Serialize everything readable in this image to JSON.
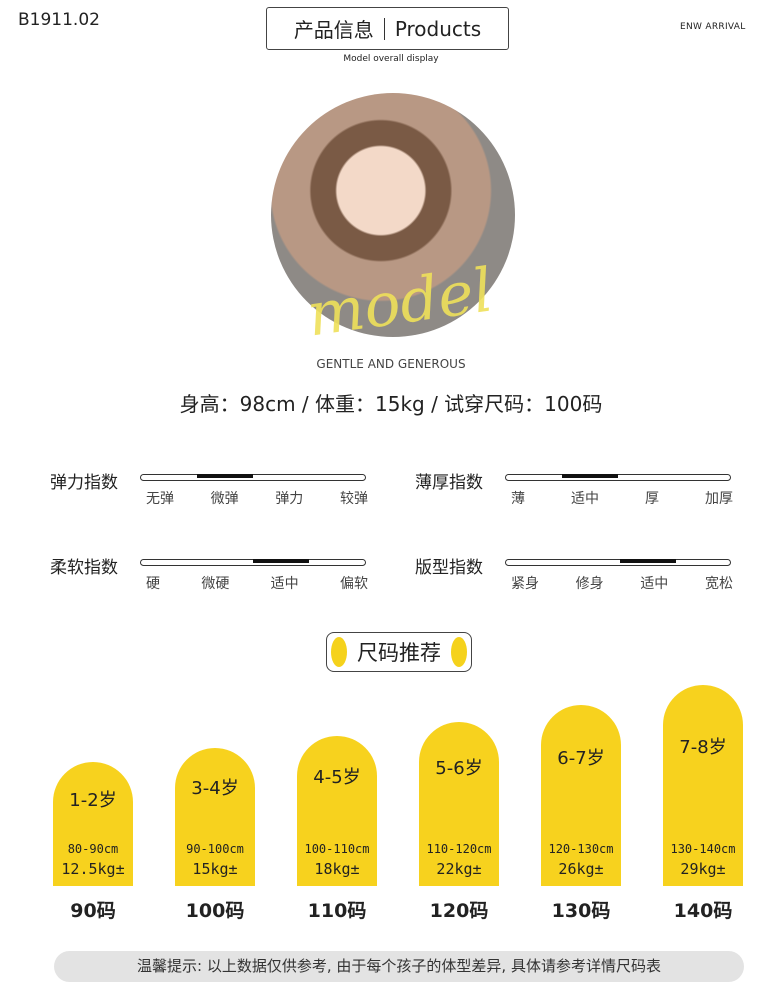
{
  "code": "B1911.02",
  "header": {
    "cn": "产品信息",
    "en": "Products",
    "subtitle": "Model overall display",
    "arrival": "ENW ARRIVAL"
  },
  "model": {
    "script": "model",
    "tagline": "GENTLE AND GENEROUS",
    "stats": "身高：98cm / 体重：15kg / 试穿尺码：100码"
  },
  "indices": [
    {
      "label": "弹力指数",
      "ticks": [
        "无弹",
        "微弹",
        "弹力",
        "较弹"
      ],
      "range": [
        0.25,
        0.5
      ]
    },
    {
      "label": "薄厚指数",
      "ticks": [
        "薄",
        "适中",
        "厚",
        "加厚"
      ],
      "range": [
        0.25,
        0.5
      ]
    },
    {
      "label": "柔软指数",
      "ticks": [
        "硬",
        "微硬",
        "适中",
        "偏软"
      ],
      "range": [
        0.5,
        0.75
      ]
    },
    {
      "label": "版型指数",
      "ticks": [
        "紧身",
        "修身",
        "适中",
        "宽松"
      ],
      "range": [
        0.51,
        0.76
      ]
    }
  ],
  "size_title": "尺码推荐",
  "accent": "#f7d21e",
  "sizes": [
    {
      "age": "1-2岁",
      "cm": "80-90cm",
      "kg": "12.5kg±",
      "size": "90码"
    },
    {
      "age": "3-4岁",
      "cm": "90-100cm",
      "kg": "15kg±",
      "size": "100码"
    },
    {
      "age": "4-5岁",
      "cm": "100-110cm",
      "kg": "18kg±",
      "size": "110码"
    },
    {
      "age": "5-6岁",
      "cm": "110-120cm",
      "kg": "22kg±",
      "size": "120码"
    },
    {
      "age": "6-7岁",
      "cm": "120-130cm",
      "kg": "26kg±",
      "size": "130码"
    },
    {
      "age": "7-8岁",
      "cm": "130-140cm",
      "kg": "29kg±",
      "size": "140码"
    }
  ],
  "tip": "温馨提示: 以上数据仅供参考, 由于每个孩子的体型差异, 具体请参考详情尺码表"
}
